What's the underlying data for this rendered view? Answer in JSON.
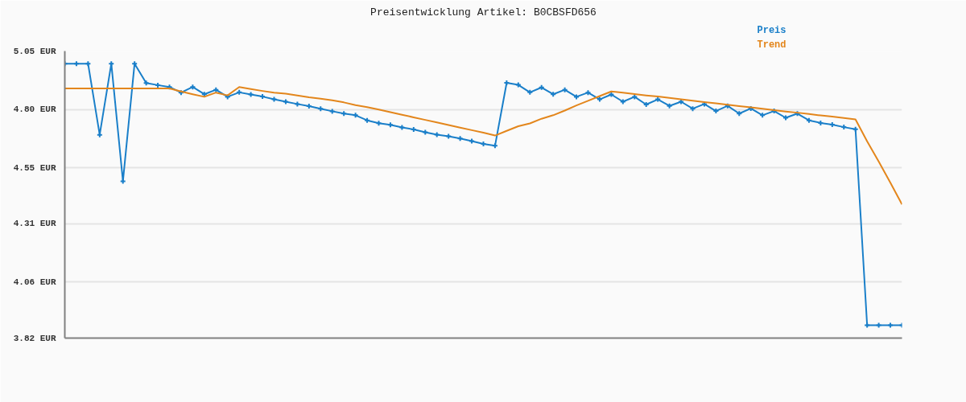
{
  "chart_data": {
    "type": "line",
    "title": "Preisentwicklung Artikel: B0CBSFD656",
    "categories": [
      null,
      null,
      null,
      null,
      null,
      null,
      null,
      null,
      null,
      null,
      null,
      null,
      null,
      null,
      null,
      null,
      null,
      null,
      null,
      null,
      null,
      null,
      null,
      null,
      null,
      null,
      null,
      null,
      null,
      null,
      null,
      null,
      null,
      null,
      null,
      null,
      null,
      null,
      null,
      null,
      null,
      null,
      null,
      null,
      null,
      null,
      null,
      null,
      null,
      null,
      null,
      null,
      null,
      null,
      null,
      null,
      null,
      null,
      null,
      null,
      null,
      null,
      null,
      null,
      null,
      null,
      null,
      null,
      null,
      null,
      null,
      null,
      null
    ],
    "series": [
      {
        "name": "Preis",
        "color": "#1a7fc9",
        "marker": "cross",
        "values": [
          4.996,
          4.996,
          4.996,
          4.691,
          4.996,
          4.492,
          4.996,
          4.913,
          4.904,
          4.896,
          4.872,
          4.896,
          4.865,
          4.884,
          4.854,
          4.873,
          4.864,
          4.855,
          4.843,
          4.833,
          4.823,
          4.814,
          4.803,
          4.792,
          4.782,
          4.775,
          4.753,
          4.741,
          4.734,
          4.723,
          4.714,
          4.702,
          4.692,
          4.685,
          4.675,
          4.664,
          4.652,
          4.644,
          4.914,
          4.905,
          4.873,
          4.894,
          4.865,
          4.884,
          4.854,
          4.872,
          4.843,
          4.864,
          4.833,
          4.854,
          4.821,
          4.843,
          4.815,
          4.833,
          4.803,
          4.823,
          4.793,
          4.815,
          4.782,
          4.804,
          4.775,
          4.793,
          4.764,
          4.782,
          4.753,
          4.742,
          4.735,
          4.724,
          4.715,
          3.875,
          3.875,
          3.875,
          3.875
        ]
      },
      {
        "name": "Trend",
        "color": "#e3861c",
        "marker": "none",
        "values": [
          4.89,
          4.89,
          4.89,
          4.89,
          4.89,
          4.89,
          4.89,
          4.89,
          4.89,
          4.89,
          4.877,
          4.865,
          4.854,
          4.872,
          4.86,
          4.896,
          4.887,
          4.879,
          4.872,
          4.867,
          4.86,
          4.852,
          4.846,
          4.839,
          4.83,
          4.818,
          4.81,
          4.799,
          4.788,
          4.777,
          4.766,
          4.755,
          4.744,
          4.733,
          4.722,
          4.711,
          4.7,
          4.688,
          4.708,
          4.728,
          4.74,
          4.76,
          4.775,
          4.795,
          4.817,
          4.837,
          4.857,
          4.877,
          4.872,
          4.866,
          4.86,
          4.855,
          4.849,
          4.843,
          4.837,
          4.831,
          4.826,
          4.82,
          4.814,
          4.809,
          4.803,
          4.797,
          4.791,
          4.786,
          4.78,
          4.774,
          4.769,
          4.763,
          4.757,
          4.663,
          4.576,
          4.486,
          4.393
        ]
      }
    ],
    "ylim": [
      3.82,
      5.05
    ],
    "yticks": [
      {
        "value": 3.82,
        "label": "3.82 EUR"
      },
      {
        "value": 4.06,
        "label": "4.06 EUR"
      },
      {
        "value": 4.31,
        "label": "4.31 EUR"
      },
      {
        "value": 4.55,
        "label": "4.55 EUR"
      },
      {
        "value": 4.8,
        "label": "4.80 EUR"
      },
      {
        "value": 5.05,
        "label": "5.05 EUR"
      }
    ],
    "grid": "y",
    "tick_labels": "y",
    "line_style": "solid"
  }
}
